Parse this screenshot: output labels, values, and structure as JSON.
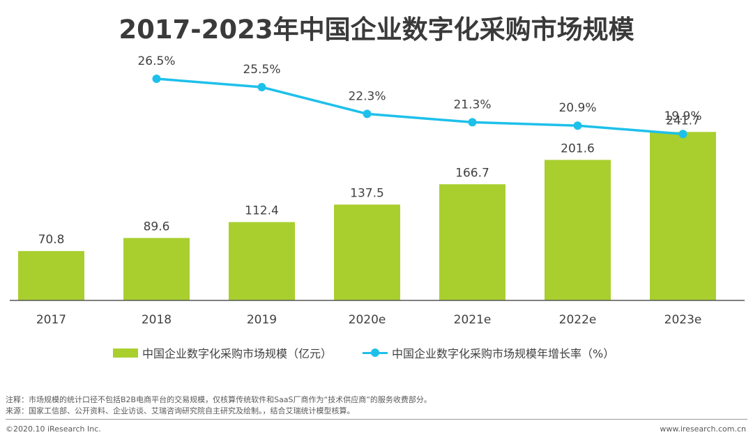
{
  "title": "2017-2023年中国企业数字化采购市场规模",
  "colors": {
    "bar": "#a9cf2f",
    "line": "#1ec0ea",
    "axis": "#555555",
    "text": "#404040"
  },
  "chart_data": {
    "type": "bar+line",
    "categories": [
      "2017",
      "2018",
      "2019",
      "2020e",
      "2021e",
      "2022e",
      "2023e"
    ],
    "series": [
      {
        "name": "中国企业数字化采购市场规模（亿元）",
        "type": "bar",
        "values": [
          70.8,
          89.6,
          112.4,
          137.5,
          166.7,
          201.6,
          241.7
        ],
        "labels": [
          "70.8",
          "89.6",
          "112.4",
          "137.5",
          "166.7",
          "201.6",
          "241.7"
        ]
      },
      {
        "name": "中国企业数字化采购市场规模年增长率（%）",
        "type": "line",
        "values": [
          null,
          26.5,
          25.5,
          22.3,
          21.3,
          20.9,
          19.9
        ],
        "labels": [
          "",
          "26.5%",
          "25.5%",
          "22.3%",
          "21.3%",
          "20.9%",
          "19.9%"
        ]
      }
    ],
    "ylim_bar": [
      0,
      260
    ],
    "ylim_line": [
      0,
      30
    ],
    "legend_position": "bottom"
  },
  "legend": {
    "bar_label": "中国企业数字化采购市场规模（亿元）",
    "line_label": "中国企业数字化采购市场规模年增长率（%）"
  },
  "notes": {
    "note": "注释：市场规模的统计口径不包括B2B电商平台的交易规模，仅核算传统软件和SaaS厂商作为“技术供应商”的服务收费部分。",
    "source": "来源：国家工信部、公开资料、企业访谈、艾瑞咨询研究院自主研究及绘制。，结合艾瑞统计模型核算。"
  },
  "footer": {
    "copyright": "©2020.10 iResearch Inc.",
    "website": "www.iresearch.com.cn"
  }
}
